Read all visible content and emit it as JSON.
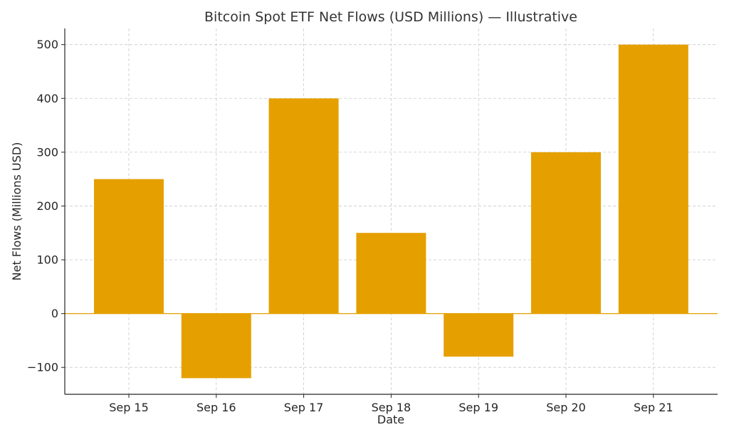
{
  "chart_data": {
    "type": "bar",
    "title": "Bitcoin Spot ETF Net Flows (USD Millions) — Illustrative",
    "xlabel": "Date",
    "ylabel": "Net Flows (Millions USD)",
    "categories": [
      "Sep 15",
      "Sep 16",
      "Sep 17",
      "Sep 18",
      "Sep 19",
      "Sep 20",
      "Sep 21"
    ],
    "values": [
      250,
      -120,
      400,
      150,
      -80,
      300,
      500
    ],
    "ylim": [
      -150,
      530
    ],
    "yticks": [
      -100,
      0,
      100,
      200,
      300,
      400,
      500
    ],
    "ytick_labels": [
      "−100",
      "0",
      "100",
      "200",
      "300",
      "400",
      "500"
    ],
    "grid": true,
    "bar_color": "#e5a000",
    "zero_line_color": "#e5a000"
  }
}
